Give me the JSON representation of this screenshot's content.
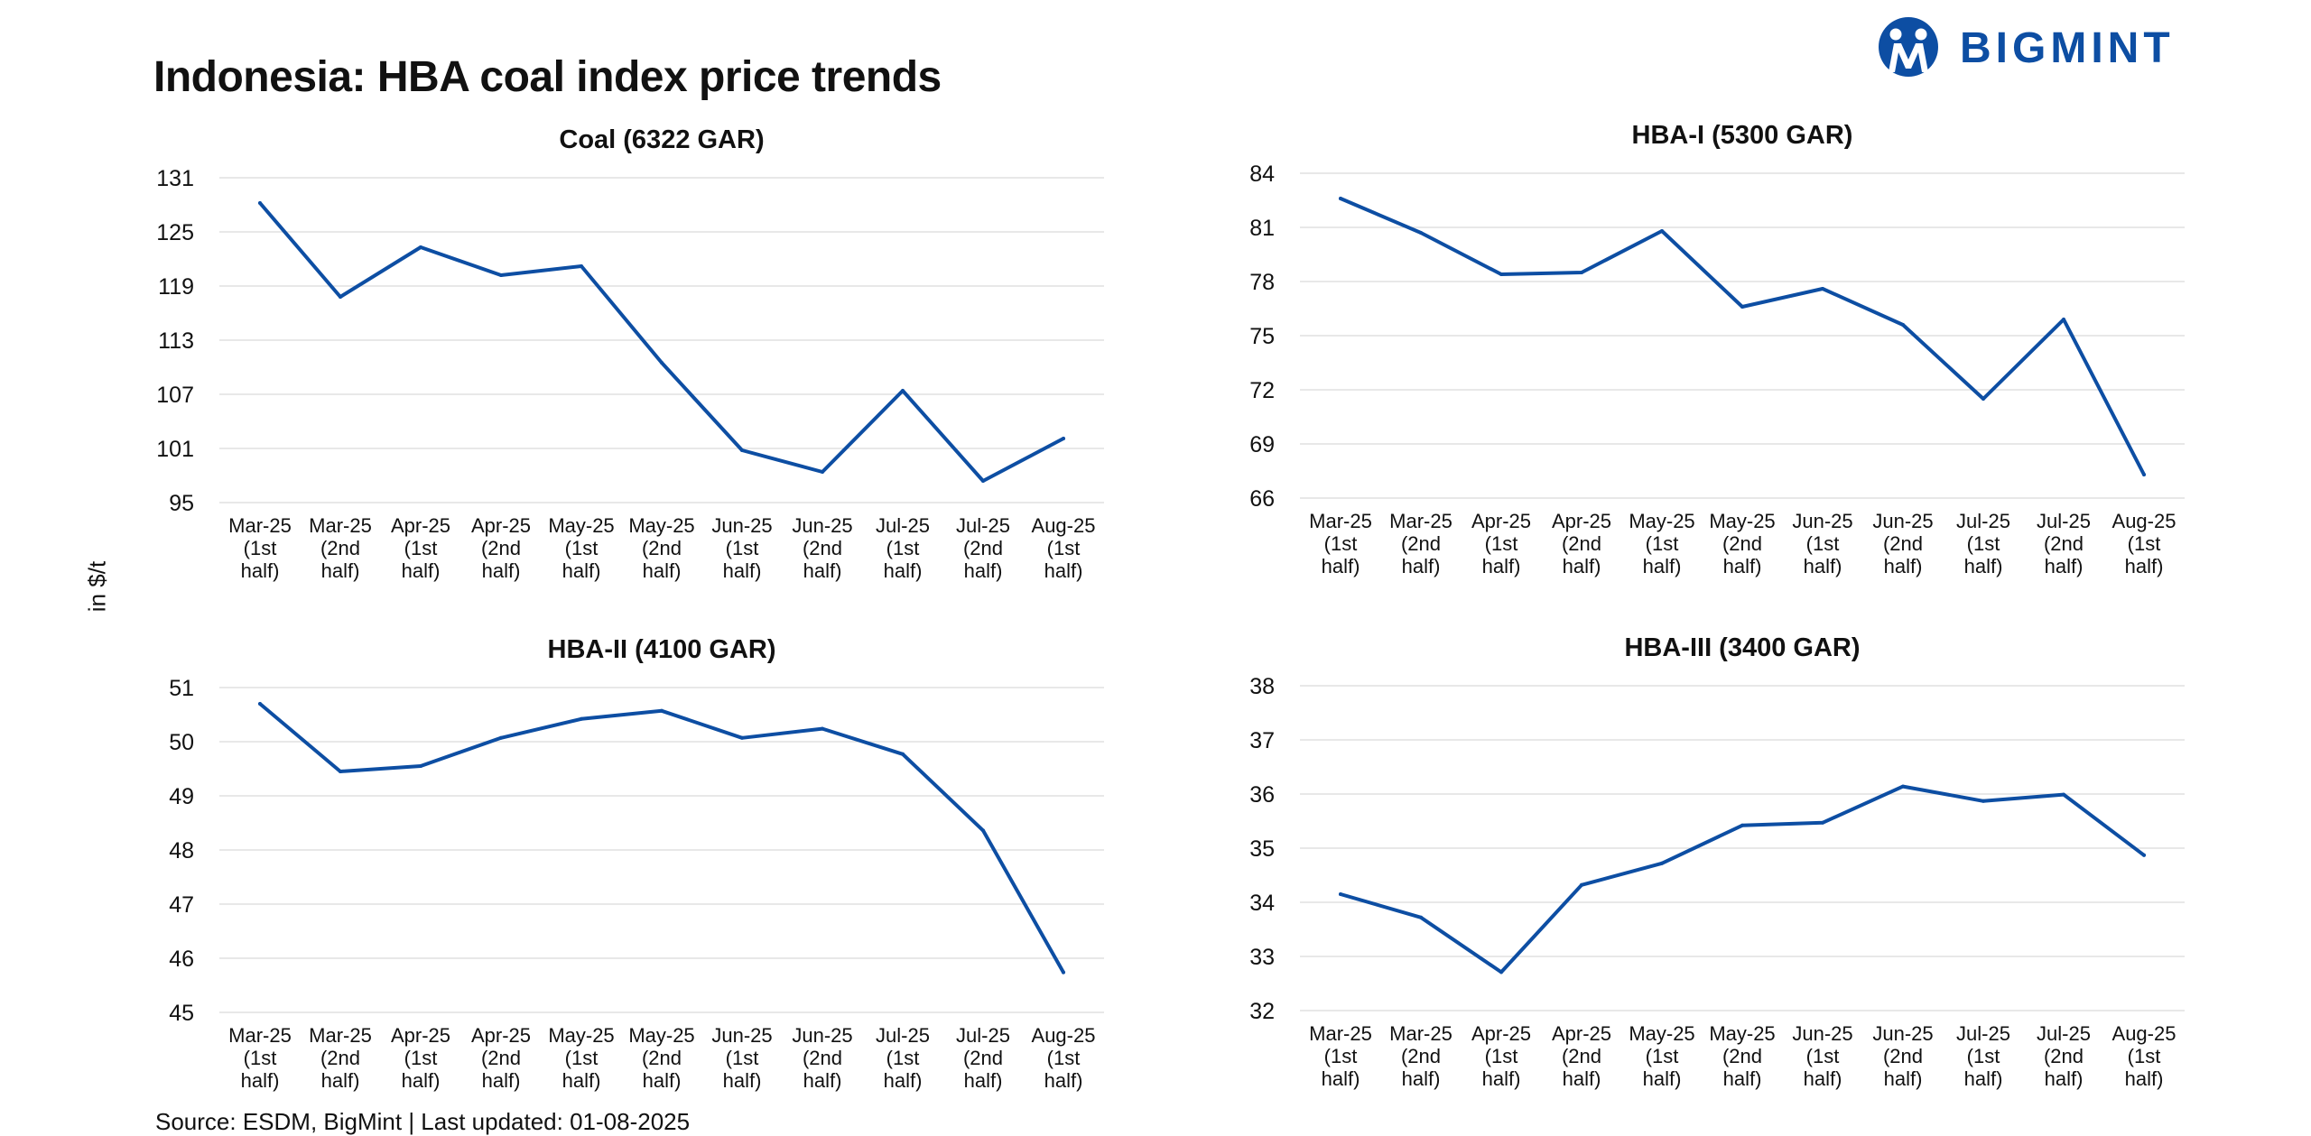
{
  "page": {
    "title": "Indonesia: HBA coal index price trends",
    "ylabel": "in $/t",
    "source": "Source: ESDM, BigMint | Last updated: 01-08-2025",
    "logo_text": "BIGMINT",
    "colors": {
      "series": "#0d4ea3",
      "grid": "#d9d9d9",
      "logo": "#0d4ea3"
    }
  },
  "chart_data": [
    {
      "type": "line",
      "title": "Coal (6322 GAR)",
      "categories": [
        [
          "Mar-25",
          "(1st",
          "half)"
        ],
        [
          "Mar-25",
          "(2nd",
          "half)"
        ],
        [
          "Apr-25",
          "(1st",
          "half)"
        ],
        [
          "Apr-25",
          "(2nd",
          "half)"
        ],
        [
          "May-25",
          "(1st",
          "half)"
        ],
        [
          "May-25",
          "(2nd",
          "half)"
        ],
        [
          "Jun-25",
          "(1st",
          "half)"
        ],
        [
          "Jun-25",
          "(2nd",
          "half)"
        ],
        [
          "Jul-25",
          "(1st",
          "half)"
        ],
        [
          "Jul-25",
          "(2nd",
          "half)"
        ],
        [
          "Aug-25",
          "(1st",
          "half)"
        ]
      ],
      "values": [
        128.2,
        117.8,
        123.3,
        120.2,
        121.2,
        110.5,
        100.8,
        98.4,
        107.4,
        97.4,
        102.1
      ],
      "yticks": [
        95,
        101,
        107,
        113,
        119,
        125,
        131
      ],
      "ylim": [
        95,
        131
      ],
      "grid": true
    },
    {
      "type": "line",
      "title": "HBA-I (5300 GAR)",
      "categories": [
        [
          "Mar-25",
          "(1st",
          "half)"
        ],
        [
          "Mar-25",
          "(2nd",
          "half)"
        ],
        [
          "Apr-25",
          "(1st",
          "half)"
        ],
        [
          "Apr-25",
          "(2nd",
          "half)"
        ],
        [
          "May-25",
          "(1st",
          "half)"
        ],
        [
          "May-25",
          "(2nd",
          "half)"
        ],
        [
          "Jun-25",
          "(1st",
          "half)"
        ],
        [
          "Jun-25",
          "(2nd",
          "half)"
        ],
        [
          "Jul-25",
          "(1st",
          "half)"
        ],
        [
          "Jul-25",
          "(2nd",
          "half)"
        ],
        [
          "Aug-25",
          "(1st",
          "half)"
        ]
      ],
      "values": [
        82.6,
        80.7,
        78.4,
        78.5,
        80.8,
        76.6,
        77.6,
        75.6,
        71.5,
        75.9,
        67.3
      ],
      "yticks": [
        66,
        69,
        72,
        75,
        78,
        81,
        84
      ],
      "ylim": [
        66,
        84
      ],
      "grid": true
    },
    {
      "type": "line",
      "title": "HBA-II (4100 GAR)",
      "categories": [
        [
          "Mar-25",
          "(1st",
          "half)"
        ],
        [
          "Mar-25",
          "(2nd",
          "half)"
        ],
        [
          "Apr-25",
          "(1st",
          "half)"
        ],
        [
          "Apr-25",
          "(2nd",
          "half)"
        ],
        [
          "May-25",
          "(1st",
          "half)"
        ],
        [
          "May-25",
          "(2nd",
          "half)"
        ],
        [
          "Jun-25",
          "(1st",
          "half)"
        ],
        [
          "Jun-25",
          "(2nd",
          "half)"
        ],
        [
          "Jul-25",
          "(1st",
          "half)"
        ],
        [
          "Jul-25",
          "(2nd",
          "half)"
        ],
        [
          "Aug-25",
          "(1st",
          "half)"
        ]
      ],
      "values": [
        50.7,
        49.45,
        49.55,
        50.07,
        50.42,
        50.57,
        50.07,
        50.24,
        49.77,
        48.36,
        45.74
      ],
      "yticks": [
        45,
        46,
        47,
        48,
        49,
        50,
        51
      ],
      "ylim": [
        45,
        51
      ],
      "grid": true
    },
    {
      "type": "line",
      "title": "HBA-III (3400 GAR)",
      "categories": [
        [
          "Mar-25",
          "(1st",
          "half)"
        ],
        [
          "Mar-25",
          "(2nd",
          "half)"
        ],
        [
          "Apr-25",
          "(1st",
          "half)"
        ],
        [
          "Apr-25",
          "(2nd",
          "half)"
        ],
        [
          "May-25",
          "(1st",
          "half)"
        ],
        [
          "May-25",
          "(2nd",
          "half)"
        ],
        [
          "Jun-25",
          "(1st",
          "half)"
        ],
        [
          "Jun-25",
          "(2nd",
          "half)"
        ],
        [
          "Jul-25",
          "(1st",
          "half)"
        ],
        [
          "Jul-25",
          "(2nd",
          "half)"
        ],
        [
          "Aug-25",
          "(1st",
          "half)"
        ]
      ],
      "values": [
        34.15,
        33.72,
        32.71,
        34.32,
        34.72,
        35.42,
        35.47,
        36.14,
        35.87,
        35.99,
        34.87
      ],
      "yticks": [
        32,
        33,
        34,
        35,
        36,
        37,
        38
      ],
      "ylim": [
        32,
        38
      ],
      "grid": true
    }
  ]
}
